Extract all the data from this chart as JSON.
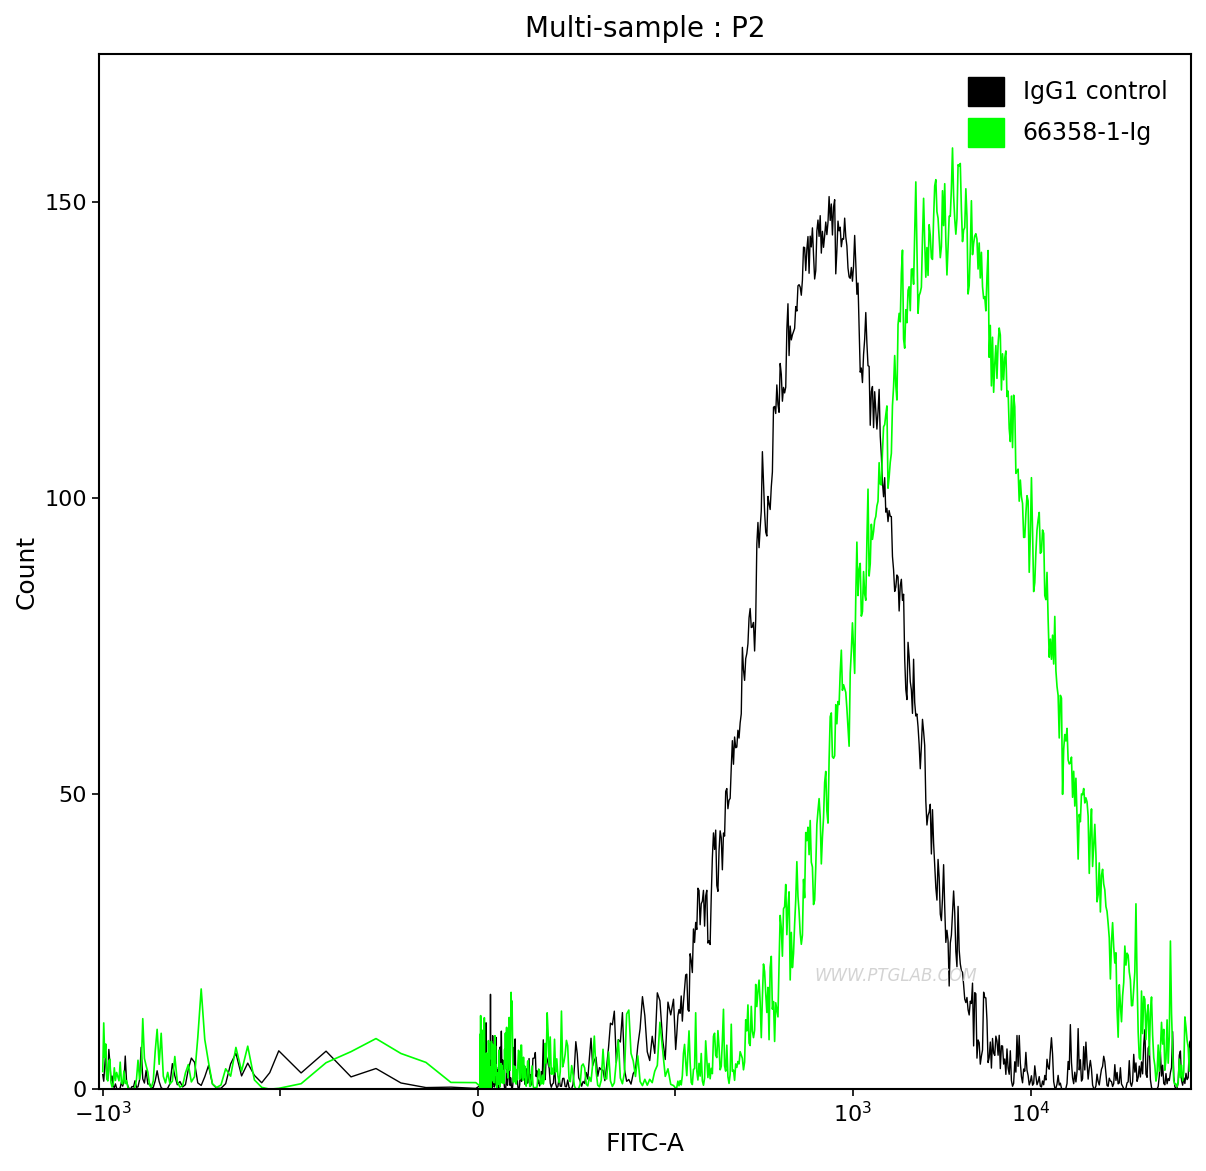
{
  "title": "Multi-sample : P2",
  "xlabel": "FITC-A",
  "ylabel": "Count",
  "ylim": [
    0,
    175
  ],
  "background_color": "#ffffff",
  "line_color_black": "#000000",
  "line_color_green": "#00ff00",
  "legend_labels": [
    "IgG1 control",
    "66358-1-Ig"
  ],
  "watermark": "WWW.PTGLAB.COM",
  "black_peak_log": 2.85,
  "black_peak_count": 148,
  "black_sigma": 0.38,
  "green_peak_log": 3.55,
  "green_peak_count": 147,
  "green_sigma": 0.48,
  "linthresh": 100,
  "linscale": 1.0
}
